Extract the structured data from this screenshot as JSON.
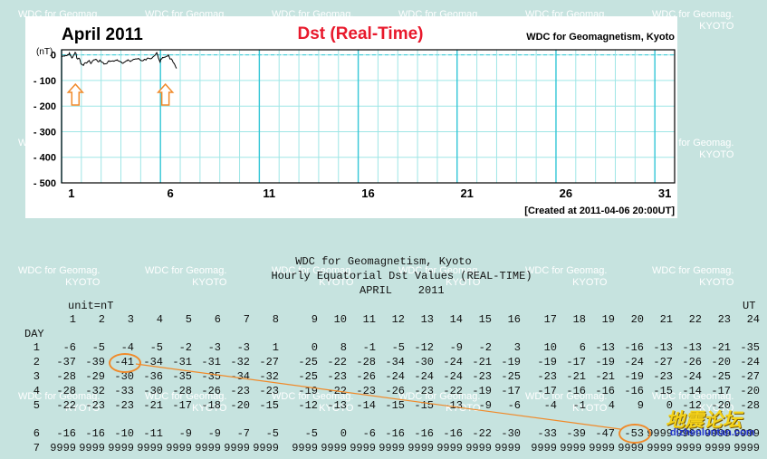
{
  "watermarks": [
    {
      "line1": "WDC for Geomag.",
      "line2": "KYOTO"
    },
    {
      "line1": "WDC for Geomag.",
      "line2": "KYOTO"
    },
    {
      "line1": "WDC for Geomag.",
      "line2": "KYOTO"
    },
    {
      "line1": "WDC for Geomag.",
      "line2": "KYOTO"
    },
    {
      "line1": "WDC for Geomag.",
      "line2": "KYOTO"
    },
    {
      "line1": "WDC for Geomag.",
      "line2": "KYOTO"
    },
    {
      "line1": "WDC for Geomag.",
      "line2": "KYOTO"
    },
    {
      "line1": "WDC for Geomag.",
      "line2": "KYOTO"
    },
    {
      "line1": "WDC for Geomag.",
      "line2": "KYOTO"
    },
    {
      "line1": "WDC for Geomag.",
      "line2": "KYOTO"
    },
    {
      "line1": "WDC for Geomag.",
      "line2": "KYOTO"
    },
    {
      "line1": "WDC for Geomag.",
      "line2": "KYOTO"
    },
    {
      "line1": "WDC for Geomag.",
      "line2": "KYOTO"
    },
    {
      "line1": "WDC for Geomag.",
      "line2": "KYOTO"
    },
    {
      "line1": "WDC for Geomag.",
      "line2": "KYOTO"
    },
    {
      "line1": "WDC for Geomag.",
      "line2": "KYOTO"
    },
    {
      "line1": "WDC for Geomag.",
      "line2": "KYOTO"
    },
    {
      "line1": "WDC for Geomag.",
      "line2": "KYOTO"
    },
    {
      "line1": "WDC for Geomag.",
      "line2": "KYOTO"
    },
    {
      "line1": "WDC for Geomag.",
      "line2": "KYOTO"
    },
    {
      "line1": "WDC for Geomag.",
      "line2": "KYOTO"
    },
    {
      "line1": "WDC for Geomag.",
      "line2": "KYOTO"
    },
    {
      "line1": "WDC for Geomag.",
      "line2": "KYOTO"
    },
    {
      "line1": "WDC for Geomag.",
      "line2": "KYOTO"
    }
  ],
  "chart_data": {
    "type": "line",
    "title": "Dst (Real-Time)",
    "period": "April  2011",
    "source": "WDC for Geomagnetism, Kyoto",
    "created": "[Created at 2011-04-06 20:00UT]",
    "ylabel": "(nT)",
    "ylim": [
      -500,
      20
    ],
    "yticks": [
      "20",
      "0",
      "- 100",
      "- 200",
      "- 300",
      "- 400",
      "- 500"
    ],
    "xlim": [
      1,
      31
    ],
    "xticks": [
      "1",
      "6",
      "11",
      "16",
      "21",
      "26",
      "31"
    ],
    "grid": true,
    "line_color": "#000000",
    "grid_color": "#9fe6e6",
    "major_grid_color": "#33c6d6",
    "title_color": "#e8192c",
    "arrow_color": "#f08a2a",
    "arrows_at_day": [
      1.7,
      6.25
    ],
    "series": [
      {
        "day": 1,
        "hourly": [
          -6,
          -5,
          -4,
          -5,
          -2,
          -3,
          -3,
          1,
          0,
          8,
          -1,
          -5,
          -12,
          -9,
          -2,
          3,
          10,
          6,
          -13,
          -16,
          -13,
          -13,
          -21,
          -35
        ]
      },
      {
        "day": 2,
        "hourly": [
          -37,
          -39,
          -41,
          -34,
          -31,
          -31,
          -32,
          -27,
          -25,
          -22,
          -28,
          -34,
          -30,
          -24,
          -21,
          -19,
          -19,
          -17,
          -19,
          -24,
          -27,
          -26,
          -20,
          -24
        ]
      },
      {
        "day": 3,
        "hourly": [
          -28,
          -29,
          -30,
          -36,
          -35,
          -35,
          -34,
          -32,
          -25,
          -23,
          -26,
          -24,
          -24,
          -24,
          -23,
          -25,
          -23,
          -21,
          -21,
          -19,
          -23,
          -24,
          -25,
          -27
        ]
      },
      {
        "day": 4,
        "hourly": [
          -28,
          -32,
          -33,
          -30,
          -28,
          -26,
          -23,
          -23,
          -19,
          -22,
          -23,
          -26,
          -23,
          -22,
          -19,
          -17,
          -17,
          -16,
          -16,
          -16,
          -15,
          -14,
          -17,
          -20
        ]
      },
      {
        "day": 5,
        "hourly": [
          -22,
          -23,
          -23,
          -21,
          -17,
          -18,
          -20,
          -15,
          -12,
          -13,
          -14,
          -15,
          -15,
          -13,
          -9,
          -6,
          -4,
          -1,
          4,
          9,
          0,
          -12,
          -20,
          -28
        ]
      },
      {
        "day": 6,
        "hourly": [
          -16,
          -16,
          -10,
          -11,
          -9,
          -9,
          -7,
          -5,
          -5,
          0,
          -6,
          -16,
          -16,
          -16,
          -22,
          -30,
          -33,
          -39,
          -47,
          -53,
          9999,
          9999,
          9999,
          9999
        ]
      },
      {
        "day": 7,
        "hourly": [
          9999,
          9999,
          9999,
          9999,
          9999,
          9999,
          9999,
          9999,
          9999,
          9999,
          9999,
          9999,
          9999,
          9999,
          9999,
          9999,
          9999,
          9999,
          9999,
          9999,
          9999,
          9999,
          9999,
          9999
        ]
      }
    ]
  },
  "table": {
    "header1": "WDC for Geomagnetism, Kyoto",
    "header2": "Hourly Equatorial Dst Values (REAL-TIME)",
    "month": "APRIL    2011",
    "unit": "unit=nT",
    "ut_label": "UT",
    "day_label": "DAY",
    "hours": [
      "1",
      "2",
      "3",
      "4",
      "5",
      "6",
      "7",
      "8",
      "9",
      "10",
      "11",
      "12",
      "13",
      "14",
      "15",
      "16",
      "17",
      "18",
      "19",
      "20",
      "21",
      "22",
      "23",
      "24"
    ],
    "day_numbers": [
      "1",
      "2",
      "3",
      "4",
      "5",
      "6",
      "7"
    ]
  },
  "annotation": {
    "circle_1_day": 2,
    "circle_1_hour": 3,
    "circle_2_day": 6,
    "circle_2_hour": 20
  },
  "forum": {
    "logo": "地震论坛",
    "url": "dizhenluntan.com"
  }
}
